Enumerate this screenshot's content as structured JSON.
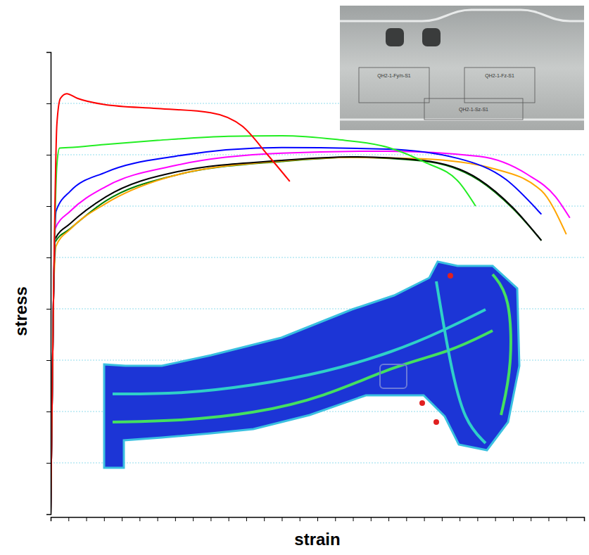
{
  "chart_data": {
    "type": "line",
    "x_label": "strain",
    "y_label": "stress",
    "xlim": [
      0,
      30
    ],
    "ylim": [
      0,
      9
    ],
    "xticks": [
      0,
      1,
      2,
      3,
      4,
      5,
      6,
      7,
      8,
      9,
      10,
      11,
      12,
      13,
      14,
      15,
      16,
      17,
      18,
      19,
      20,
      21,
      22,
      23,
      24,
      25,
      26,
      27,
      28,
      29,
      30
    ],
    "yticks": [
      0,
      1,
      2,
      3,
      4,
      5,
      6,
      7,
      8,
      9
    ],
    "grid": true,
    "tick_labels": false,
    "annotations": [
      "QH2-1-Fy/n-S1",
      "QH2-1-Fz-S1",
      "QH2-1-Sz-S1"
    ],
    "series": [
      {
        "color": "#008000",
        "x": [
          0,
          0.15,
          0.25,
          1.1,
          3.1,
          7,
          13,
          16.9,
          20.9,
          24.1,
          26,
          27.6
        ],
        "values": [
          0,
          4,
          5.3,
          5.56,
          6.1,
          6.6,
          6.87,
          6.95,
          6.88,
          6.5,
          5.95,
          5.33
        ]
      },
      {
        "color": "#ffa500",
        "x": [
          0,
          0.15,
          0.3,
          1.1,
          3.1,
          7,
          13,
          16.9,
          20.9,
          24.9,
          27.6,
          29.0
        ],
        "values": [
          0,
          4,
          5.22,
          5.55,
          6.05,
          6.6,
          6.88,
          6.95,
          6.92,
          6.73,
          6.3,
          5.45
        ]
      },
      {
        "color": "#000000",
        "x": [
          0,
          0.15,
          0.25,
          1.1,
          3.1,
          7,
          13,
          16.9,
          20.9,
          24.1,
          26,
          27.6
        ],
        "values": [
          0,
          4,
          5.36,
          5.66,
          6.18,
          6.66,
          6.89,
          6.96,
          6.89,
          6.52,
          5.97,
          5.33
        ]
      },
      {
        "color": "#ff00ff",
        "x": [
          0,
          0.15,
          0.25,
          1.1,
          3.1,
          7,
          13,
          18.9,
          24.1,
          26.8,
          28.4,
          29.2
        ],
        "values": [
          0,
          4,
          5.56,
          5.9,
          6.38,
          6.79,
          7.03,
          7.07,
          6.97,
          6.62,
          6.18,
          5.77
        ]
      },
      {
        "color": "#0000ff",
        "x": [
          0,
          0.15,
          0.3,
          1.1,
          3.1,
          7,
          13,
          18.9,
          22.9,
          25.6,
          27.6
        ],
        "values": [
          0,
          4,
          5.9,
          6.29,
          6.66,
          6.97,
          7.14,
          7.11,
          6.93,
          6.52,
          5.84
        ]
      },
      {
        "color": "#22ee22",
        "x": [
          0,
          0.15,
          0.35,
          0.5,
          1,
          3,
          6,
          10,
          13,
          16,
          19,
          21,
          23,
          23.9
        ],
        "values": [
          0,
          4,
          6.8,
          7.13,
          7.14,
          7.2,
          7.28,
          7.36,
          7.37,
          7.3,
          7.14,
          6.86,
          6.45,
          6.0
        ]
      },
      {
        "color": "#ff0000",
        "x": [
          0,
          0.15,
          0.35,
          0.55,
          0.9,
          1.5,
          3,
          6,
          9,
          10.8,
          12.2,
          13.45
        ],
        "values": [
          0,
          4,
          7.6,
          8.1,
          8.19,
          8.1,
          7.98,
          7.9,
          7.82,
          7.55,
          7.0,
          6.48
        ]
      }
    ]
  }
}
